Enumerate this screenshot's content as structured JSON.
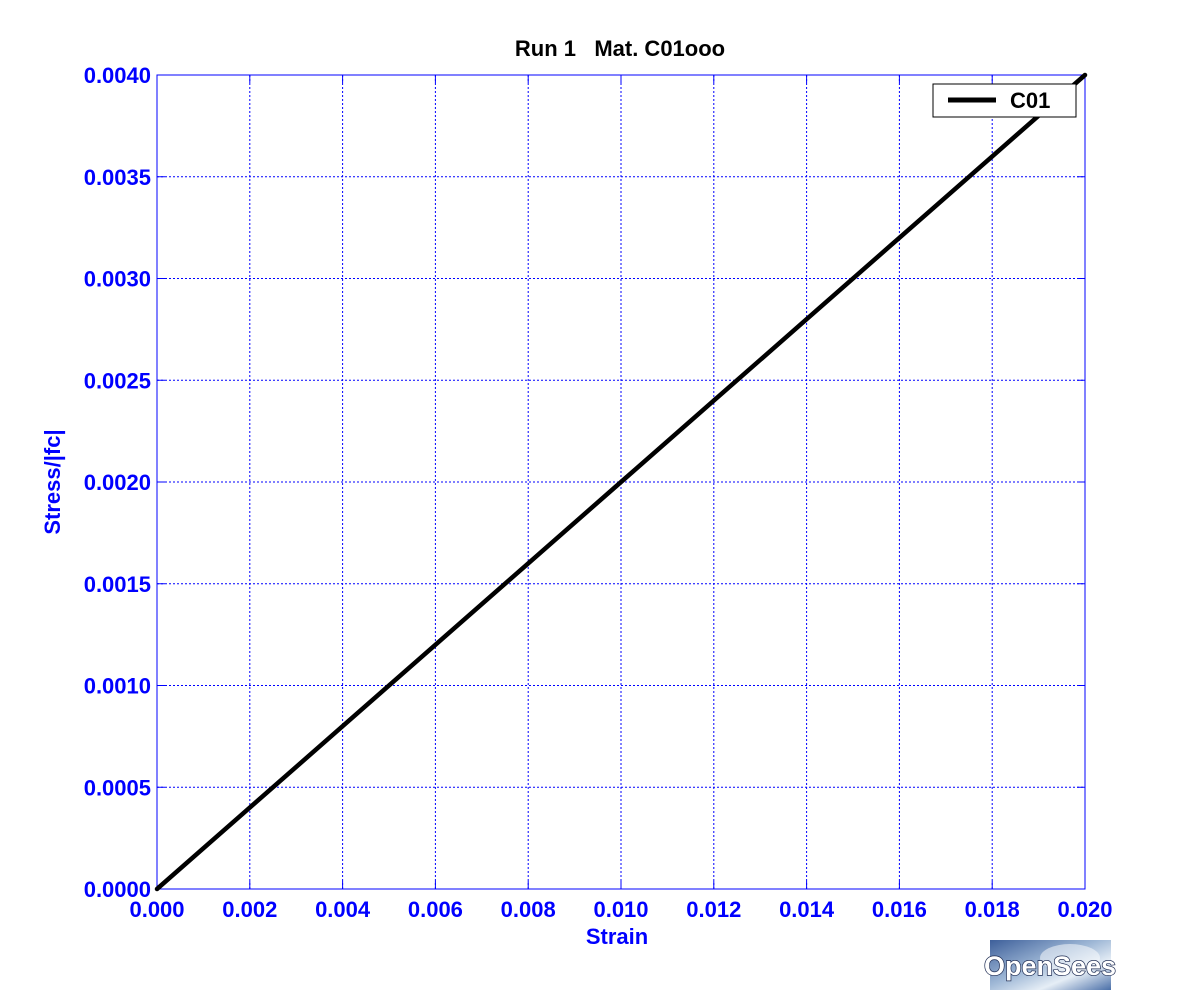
{
  "chart_data": {
    "type": "line",
    "title": "Run 1   Mat. C01ooo",
    "xlabel": "Strain",
    "ylabel": "Stress/|fc|",
    "xlim": [
      0.0,
      0.02
    ],
    "ylim": [
      0.0,
      0.004
    ],
    "x_ticks": [
      "0.000",
      "0.002",
      "0.004",
      "0.006",
      "0.008",
      "0.010",
      "0.012",
      "0.014",
      "0.016",
      "0.018",
      "0.020"
    ],
    "y_ticks": [
      "0.0000",
      "0.0005",
      "0.0010",
      "0.0015",
      "0.0020",
      "0.0025",
      "0.0030",
      "0.0035",
      "0.0040"
    ],
    "grid": true,
    "grid_style": "dotted",
    "legend_position": "top-right",
    "series": [
      {
        "name": "C01",
        "color": "#000000",
        "x": [
          0.0,
          0.002,
          0.004,
          0.006,
          0.008,
          0.01,
          0.012,
          0.014,
          0.016,
          0.018,
          0.02
        ],
        "y": [
          0.0,
          0.0004,
          0.0008,
          0.0012,
          0.0016,
          0.002,
          0.0024,
          0.0028,
          0.0032,
          0.0036,
          0.004
        ]
      }
    ]
  },
  "logo": {
    "text": "OpenSees"
  },
  "colors": {
    "axis_text": "#0000ff",
    "grid": "#0000ff",
    "line": "#000000",
    "frame": "#0000ff"
  }
}
